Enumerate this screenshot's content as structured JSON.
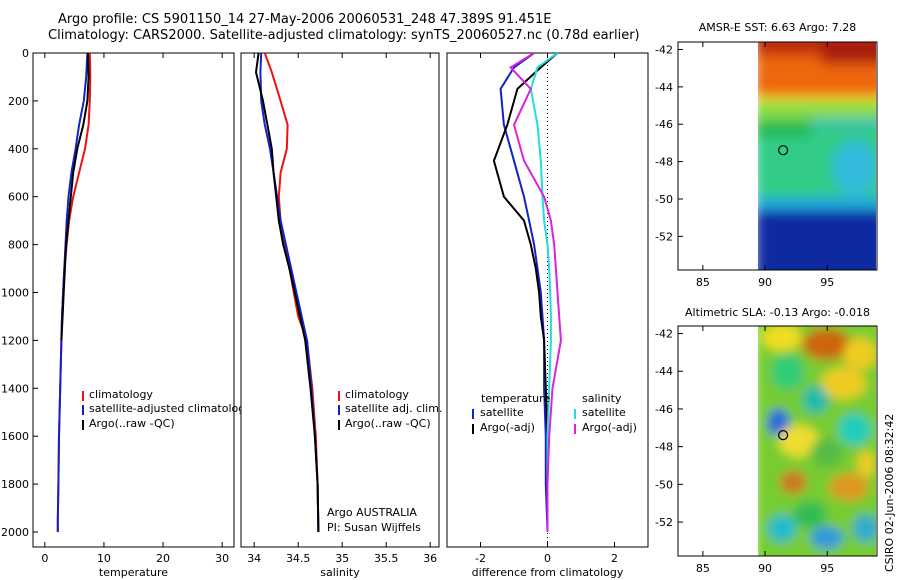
{
  "header": {
    "title_line1": "Argo profile: CS 5901150_14 27-May-2006 20060531_248 47.389S 91.451E",
    "title_line2": "Climatology: CARS2000. Satellite-adjusted climatology: synTS_20060527.nc (0.78d earlier)"
  },
  "side_label": "CSIRO 02-Jun-2006 08:32:42",
  "colors": {
    "climatology": "#ee1111",
    "satellite": "#1122cc",
    "argo": "#000000",
    "satellite_salinity": "#22dddd",
    "argo_salinity_adj": "#dd22dd"
  },
  "chart_data": [
    {
      "type": "line",
      "id": "temperature",
      "xlabel": "temperature",
      "ylabel": "",
      "xlim": [
        -2,
        32
      ],
      "ylim": [
        2050,
        0
      ],
      "xticks": [
        0,
        10,
        20,
        30
      ],
      "yticks": [
        0,
        200,
        400,
        600,
        800,
        1000,
        1200,
        1400,
        1600,
        1800,
        2000
      ],
      "legend": [
        "climatology",
        "satellite-adjusted climatology",
        "Argo(..raw -QC)"
      ],
      "series": [
        {
          "name": "climatology",
          "color": "#ee1111",
          "x": [
            7.6,
            7.7,
            7.6,
            7.4,
            6.8,
            5.8,
            4.8,
            4.1,
            3.7,
            3.3,
            3.1,
            2.9,
            2.8,
            2.6,
            2.4,
            2.3,
            2.2,
            2.2
          ],
          "y": [
            0,
            100,
            200,
            300,
            400,
            500,
            600,
            700,
            800,
            900,
            1000,
            1100,
            1200,
            1400,
            1600,
            1800,
            1950,
            2000
          ]
        },
        {
          "name": "satellite-adjusted climatology",
          "color": "#1122cc",
          "x": [
            7.2,
            7.0,
            6.6,
            5.8,
            5.2,
            4.5,
            4.0,
            3.7,
            3.5,
            3.3,
            3.1,
            2.9,
            2.8,
            2.6,
            2.4,
            2.3,
            2.2,
            2.2
          ],
          "y": [
            0,
            100,
            200,
            300,
            400,
            500,
            600,
            700,
            800,
            900,
            1000,
            1100,
            1200,
            1400,
            1600,
            1800,
            1950,
            2000
          ]
        },
        {
          "name": "Argo(..raw -QC)",
          "color": "#000000",
          "x": [
            7.3,
            7.4,
            7.2,
            6.5,
            5.5,
            4.8,
            4.4,
            4.0,
            3.6,
            3.4,
            3.2,
            3.0,
            2.8
          ],
          "y": [
            0,
            100,
            200,
            300,
            400,
            500,
            600,
            700,
            800,
            900,
            1000,
            1100,
            1200
          ]
        }
      ]
    },
    {
      "type": "line",
      "id": "salinity",
      "xlabel": "salinity",
      "ylabel": "",
      "xlim": [
        33.85,
        36.1
      ],
      "ylim": [
        2050,
        0
      ],
      "xticks": [
        34,
        34.5,
        35,
        35.5,
        36
      ],
      "yticks": [],
      "legend": [
        "climatology",
        "satellite adj. clim.",
        "Argo(..raw -QC)"
      ],
      "annotations": [
        "Argo AUSTRALIA",
        "PI: Susan Wijffels"
      ],
      "series": [
        {
          "name": "climatology",
          "color": "#ee1111",
          "x": [
            34.12,
            34.2,
            34.3,
            34.38,
            34.37,
            34.3,
            34.28,
            34.3,
            34.35,
            34.4,
            34.45,
            34.5,
            34.6,
            34.66,
            34.7,
            34.72,
            34.73
          ],
          "y": [
            0,
            80,
            200,
            300,
            400,
            500,
            600,
            700,
            800,
            900,
            1000,
            1100,
            1200,
            1400,
            1600,
            1800,
            2000
          ]
        },
        {
          "name": "satellite adj. clim.",
          "color": "#1122cc",
          "x": [
            34.08,
            34.07,
            34.08,
            34.12,
            34.18,
            34.22,
            34.26,
            34.3,
            34.36,
            34.42,
            34.48,
            34.54,
            34.6,
            34.65,
            34.69,
            34.72,
            34.73
          ],
          "y": [
            0,
            80,
            200,
            300,
            400,
            500,
            600,
            700,
            800,
            900,
            1000,
            1100,
            1200,
            1400,
            1600,
            1800,
            2000
          ]
        },
        {
          "name": "Argo(..raw -QC)",
          "color": "#000000",
          "x": [
            34.05,
            34.02,
            34.1,
            34.15,
            34.2,
            34.22,
            34.25,
            34.28,
            34.33,
            34.4,
            34.46,
            34.52,
            34.58,
            34.64,
            34.69,
            34.72,
            34.73
          ],
          "y": [
            0,
            80,
            200,
            300,
            400,
            500,
            600,
            700,
            800,
            900,
            1000,
            1100,
            1200,
            1400,
            1600,
            1800,
            2000
          ]
        }
      ]
    },
    {
      "type": "line",
      "id": "difference",
      "xlabel": "difference from climatology",
      "ylabel": "",
      "xlim": [
        -3,
        3
      ],
      "ylim": [
        2050,
        0
      ],
      "xticks": [
        -2,
        0,
        2
      ],
      "yticks": [],
      "legend_groups": [
        {
          "header": "temperature",
          "entries": [
            "satellite",
            "Argo(-adj)"
          ]
        },
        {
          "header": "salinity",
          "entries": [
            "satellite",
            "Argo(-adj)"
          ]
        }
      ],
      "series": [
        {
          "name": "temperature satellite",
          "color": "#1122cc",
          "x": [
            -0.4,
            -1.0,
            -1.4,
            -1.3,
            -1.0,
            -0.7,
            -0.55,
            -0.4,
            -0.3,
            -0.2,
            -0.15,
            -0.1,
            -0.1,
            -0.05,
            -0.05,
            0.0
          ],
          "y": [
            0,
            60,
            150,
            300,
            450,
            600,
            700,
            800,
            900,
            1000,
            1100,
            1200,
            1400,
            1600,
            1800,
            2000
          ]
        },
        {
          "name": "temperature Argo(-adj)",
          "color": "#000000",
          "x": [
            0.3,
            -0.2,
            -0.9,
            -1.2,
            -1.6,
            -1.3,
            -0.7,
            -0.5,
            -0.35,
            -0.25,
            -0.2,
            -0.1,
            -0.05,
            0.0,
            0.0,
            0.0
          ],
          "y": [
            0,
            60,
            150,
            300,
            450,
            600,
            700,
            800,
            900,
            1000,
            1100,
            1200,
            1400,
            1600,
            1800,
            2000
          ]
        },
        {
          "name": "salinity satellite",
          "color": "#22dddd",
          "x": [
            0.3,
            -0.3,
            -0.5,
            -0.3,
            -0.2,
            -0.15,
            -0.1,
            0.0,
            0.05,
            0.08,
            0.1,
            0.1,
            0.05,
            0.0,
            0.0,
            0.0
          ],
          "y": [
            0,
            60,
            150,
            300,
            450,
            600,
            700,
            800,
            900,
            1000,
            1100,
            1200,
            1400,
            1600,
            1800,
            2000
          ]
        },
        {
          "name": "salinity Argo(-adj)",
          "color": "#dd22dd",
          "x": [
            -0.4,
            -1.1,
            -0.5,
            -1.0,
            -0.7,
            -0.1,
            0.1,
            0.2,
            0.25,
            0.3,
            0.35,
            0.4,
            0.15,
            0.05,
            0.0,
            0.0
          ],
          "y": [
            0,
            60,
            150,
            300,
            450,
            600,
            700,
            800,
            900,
            1000,
            1100,
            1200,
            1400,
            1600,
            1800,
            2000
          ]
        }
      ]
    },
    {
      "type": "heatmap",
      "id": "sst_map",
      "title": "AMSR-E SST: 6.63 Argo: 7.28",
      "xlim": [
        83,
        99
      ],
      "ylim": [
        -53.8,
        -41.6
      ],
      "xticks": [
        85,
        90,
        95
      ],
      "yticks": [
        -42,
        -44,
        -46,
        -48,
        -50,
        -52
      ],
      "data_xlim": [
        90,
        99
      ],
      "marker": {
        "lon": 91.451,
        "lat": -47.389
      }
    },
    {
      "type": "heatmap",
      "id": "sla_map",
      "title": "Altimetric SLA: -0.13 Argo: -0.018",
      "xlim": [
        83,
        99
      ],
      "ylim": [
        -53.8,
        -41.6
      ],
      "xticks": [
        85,
        90,
        95
      ],
      "yticks": [
        -42,
        -44,
        -46,
        -48,
        -50,
        -52
      ],
      "data_xlim": [
        90,
        99
      ],
      "marker": {
        "lon": 91.451,
        "lat": -47.389
      }
    }
  ]
}
